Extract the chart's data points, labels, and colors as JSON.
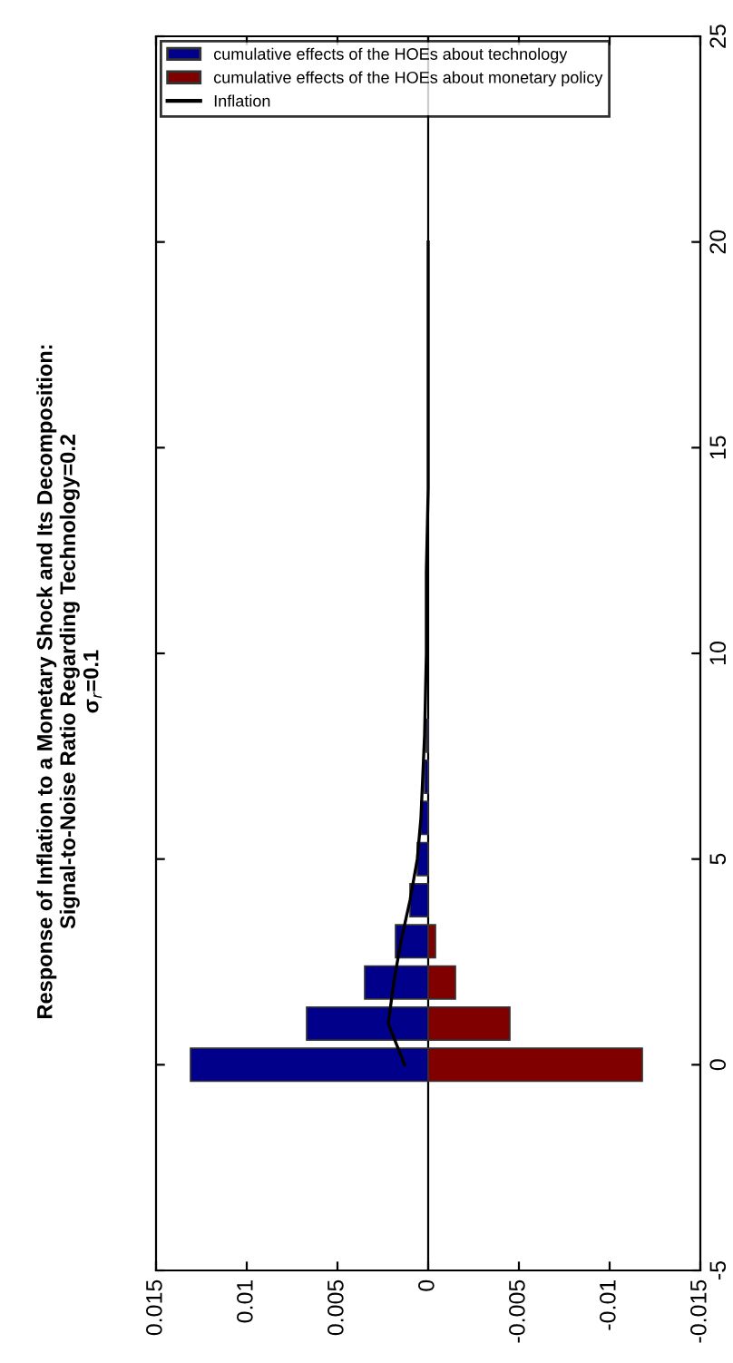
{
  "chart_data": {
    "type": "bar",
    "orientation": "horizontal",
    "stacked": true,
    "title": "Response of Inflation to a Monetary Shock and Its Decomposition:\nSignal-to-Noise Ratio Regarding Technology=0.2\nσ$_{r}$=0.1",
    "x": [
      0,
      1,
      2,
      3,
      4,
      5,
      6,
      7,
      8
    ],
    "series": [
      {
        "name": "cumulative effects of the HOEs about technology",
        "color": "#00008b",
        "values": [
          0.0131,
          0.0067,
          0.0035,
          0.0018,
          0.001,
          0.0006,
          0.0004,
          0.0002,
          0.0001
        ]
      },
      {
        "name": "cumulative effects of the HOEs about monetary policy",
        "color": "#800000",
        "values": [
          -0.0118,
          -0.0045,
          -0.0015,
          -0.0004,
          null,
          null,
          null,
          null,
          null
        ]
      },
      {
        "name": "Inflation",
        "type": "line",
        "color": "#000000",
        "marker": "none",
        "line_style": "solid",
        "x": [
          0,
          1,
          2,
          3,
          4,
          5,
          6,
          7,
          8,
          10,
          12,
          14,
          16,
          18,
          20
        ],
        "values": [
          0.0013,
          0.0022,
          0.0019,
          0.0015,
          0.001,
          0.0006,
          0.0004,
          0.0003,
          0.0002,
          0.0001,
          0.0001,
          0,
          0,
          0,
          0
        ]
      }
    ],
    "xlim": [
      0.015,
      -0.015
    ],
    "xticks": [
      0.015,
      0.01,
      0.005,
      0,
      -0.005,
      -0.01,
      -0.015
    ],
    "ylim": [
      -5,
      25
    ],
    "yticks": [
      -5,
      0,
      5,
      10,
      15,
      20,
      25
    ],
    "ref_lines": [
      {
        "axis": "x",
        "value": 0,
        "color": "#000000"
      }
    ],
    "grid": false,
    "legend": "top left"
  }
}
